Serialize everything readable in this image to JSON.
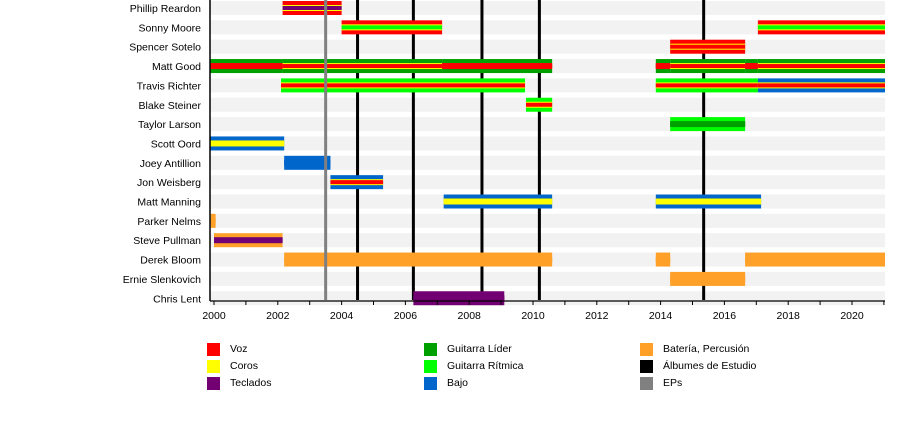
{
  "chart_data": {
    "type": "timeline",
    "title": "",
    "xlabel": "",
    "ylabel": "",
    "xlim": [
      1999.87,
      2021.05
    ],
    "x_ticks": [
      2000,
      2002,
      2004,
      2006,
      2008,
      2010,
      2012,
      2014,
      2016,
      2018,
      2020
    ],
    "x_tick_labels": [
      "2000",
      "2002",
      "2004",
      "2006",
      "2008",
      "2010",
      "2012",
      "2014",
      "2016",
      "2018",
      "2020"
    ],
    "members": [
      "Phillip Reardon",
      "Sonny Moore",
      "Spencer Sotelo",
      "Matt Good",
      "Travis Richter",
      "Blake Steiner",
      "Taylor Larson",
      "Scott Oord",
      "Joey Antillion",
      "Jon Weisberg",
      "Matt Manning",
      "Parker Nelms",
      "Steve Pullman",
      "Derek Bloom",
      "Ernie Slenkovich",
      "Chris Lent"
    ],
    "roles": {
      "voz": {
        "label": "Voz",
        "color": "#ff0000"
      },
      "coros": {
        "label": "Coros",
        "color": "#ffff00"
      },
      "teclados": {
        "label": "Teclados",
        "color": "#730073"
      },
      "guitarra_lider": {
        "label": "Guitarra Líder",
        "color": "#00a000"
      },
      "guitarra_ritmica": {
        "label": "Guitarra Rítmica",
        "color": "#00ff00"
      },
      "bajo": {
        "label": "Bajo",
        "color": "#0066cc"
      },
      "bateria": {
        "label": "Batería, Percusión",
        "color": "#ffa028"
      },
      "albumes": {
        "label": "Álbumes de Estudio",
        "color": "#000000"
      },
      "eps": {
        "label": "EPs",
        "color": "#808080"
      }
    },
    "legend": [
      [
        "voz",
        "coros",
        "teclados"
      ],
      [
        "guitarra_lider",
        "guitarra_ritmica",
        "bajo"
      ],
      [
        "bateria",
        "albumes",
        "eps"
      ]
    ],
    "legend_position": "bottom",
    "bars": [
      {
        "member": "Phillip Reardon",
        "start": 2002.15,
        "end": 2004.0,
        "outer": "voz",
        "middle": "coros",
        "inner": "teclados"
      },
      {
        "member": "Sonny Moore",
        "start": 2004.0,
        "end": 2007.15,
        "outer": "voz",
        "middle": "coros",
        "inner": "guitarra_ritmica"
      },
      {
        "member": "Sonny Moore",
        "start": 2017.05,
        "end": 2021.05,
        "outer": "voz",
        "middle": "coros",
        "inner": "guitarra_ritmica"
      },
      {
        "member": "Spencer Sotelo",
        "start": 2014.3,
        "end": 2016.65,
        "outer": "voz",
        "middle": "coros",
        "inner": "voz"
      },
      {
        "member": "Matt Good",
        "start": 1999.87,
        "end": 2002.15,
        "outer": "guitarra_lider",
        "middle": "voz",
        "inner": "voz"
      },
      {
        "member": "Matt Good",
        "start": 2002.15,
        "end": 2007.15,
        "outer": "guitarra_lider",
        "middle": "coros",
        "inner": "voz"
      },
      {
        "member": "Matt Good",
        "start": 2007.15,
        "end": 2010.6,
        "outer": "guitarra_lider",
        "middle": "voz",
        "inner": "voz"
      },
      {
        "member": "Matt Good",
        "start": 2013.85,
        "end": 2014.3,
        "outer": "guitarra_lider",
        "middle": "voz",
        "inner": "voz"
      },
      {
        "member": "Matt Good",
        "start": 2014.3,
        "end": 2016.65,
        "outer": "guitarra_lider",
        "middle": "coros",
        "inner": "voz"
      },
      {
        "member": "Matt Good",
        "start": 2016.65,
        "end": 2017.05,
        "outer": "guitarra_lider",
        "middle": "voz",
        "inner": "voz"
      },
      {
        "member": "Matt Good",
        "start": 2017.05,
        "end": 2021.05,
        "outer": "guitarra_lider",
        "middle": "coros",
        "inner": "voz"
      },
      {
        "member": "Travis Richter",
        "start": 2002.1,
        "end": 2009.75,
        "outer": "guitarra_ritmica",
        "middle": "coros",
        "inner": "voz"
      },
      {
        "member": "Travis Richter",
        "start": 2013.85,
        "end": 2017.05,
        "outer": "guitarra_ritmica",
        "middle": "coros",
        "inner": "voz"
      },
      {
        "member": "Travis Richter",
        "start": 2017.05,
        "end": 2021.05,
        "outer": "bajo",
        "middle": "coros",
        "inner": "voz"
      },
      {
        "member": "Blake Steiner",
        "start": 2009.78,
        "end": 2010.6,
        "outer": "guitarra_ritmica",
        "middle": "coros",
        "inner": "voz"
      },
      {
        "member": "Taylor Larson",
        "start": 2014.3,
        "end": 2016.65,
        "outer": "guitarra_ritmica",
        "middle": "guitarra_lider",
        "inner": "guitarra_lider"
      },
      {
        "member": "Scott Oord",
        "start": 1999.87,
        "end": 2002.2,
        "outer": "bajo",
        "middle": "coros",
        "inner": "coros"
      },
      {
        "member": "Joey Antillion",
        "start": 2002.2,
        "end": 2003.65,
        "outer": "bajo",
        "middle": "bajo",
        "inner": "bajo"
      },
      {
        "member": "Jon Weisberg",
        "start": 2003.65,
        "end": 2005.3,
        "outer": "bajo",
        "middle": "coros",
        "inner": "voz"
      },
      {
        "member": "Matt Manning",
        "start": 2007.2,
        "end": 2010.6,
        "outer": "bajo",
        "middle": "coros",
        "inner": "coros"
      },
      {
        "member": "Matt Manning",
        "start": 2013.85,
        "end": 2017.15,
        "outer": "bajo",
        "middle": "coros",
        "inner": "coros"
      },
      {
        "member": "Parker Nelms",
        "start": 1999.9,
        "end": 2000.05,
        "outer": "bateria",
        "middle": "bateria",
        "inner": "bateria"
      },
      {
        "member": "Steve Pullman",
        "start": 2000.0,
        "end": 2002.15,
        "outer": "bateria",
        "middle": "teclados",
        "inner": "teclados"
      },
      {
        "member": "Derek Bloom",
        "start": 2002.2,
        "end": 2010.6,
        "outer": "bateria",
        "middle": "bateria",
        "inner": "bateria"
      },
      {
        "member": "Derek Bloom",
        "start": 2013.85,
        "end": 2014.3,
        "outer": "bateria",
        "middle": "bateria",
        "inner": "bateria"
      },
      {
        "member": "Derek Bloom",
        "start": 2016.65,
        "end": 2021.05,
        "outer": "bateria",
        "middle": "bateria",
        "inner": "bateria"
      },
      {
        "member": "Ernie Slenkovich",
        "start": 2014.3,
        "end": 2016.65,
        "outer": "bateria",
        "middle": "bateria",
        "inner": "bateria"
      },
      {
        "member": "Chris Lent",
        "start": 2006.25,
        "end": 2009.1,
        "outer": "teclados",
        "middle": "teclados",
        "inner": "teclados"
      }
    ],
    "release_lines": [
      {
        "type": "eps",
        "year": 2003.5
      },
      {
        "type": "albumes",
        "year": 2004.5
      },
      {
        "type": "albumes",
        "year": 2006.25
      },
      {
        "type": "albumes",
        "year": 2008.4
      },
      {
        "type": "albumes",
        "year": 2010.2
      },
      {
        "type": "albumes",
        "year": 2015.35
      }
    ]
  }
}
